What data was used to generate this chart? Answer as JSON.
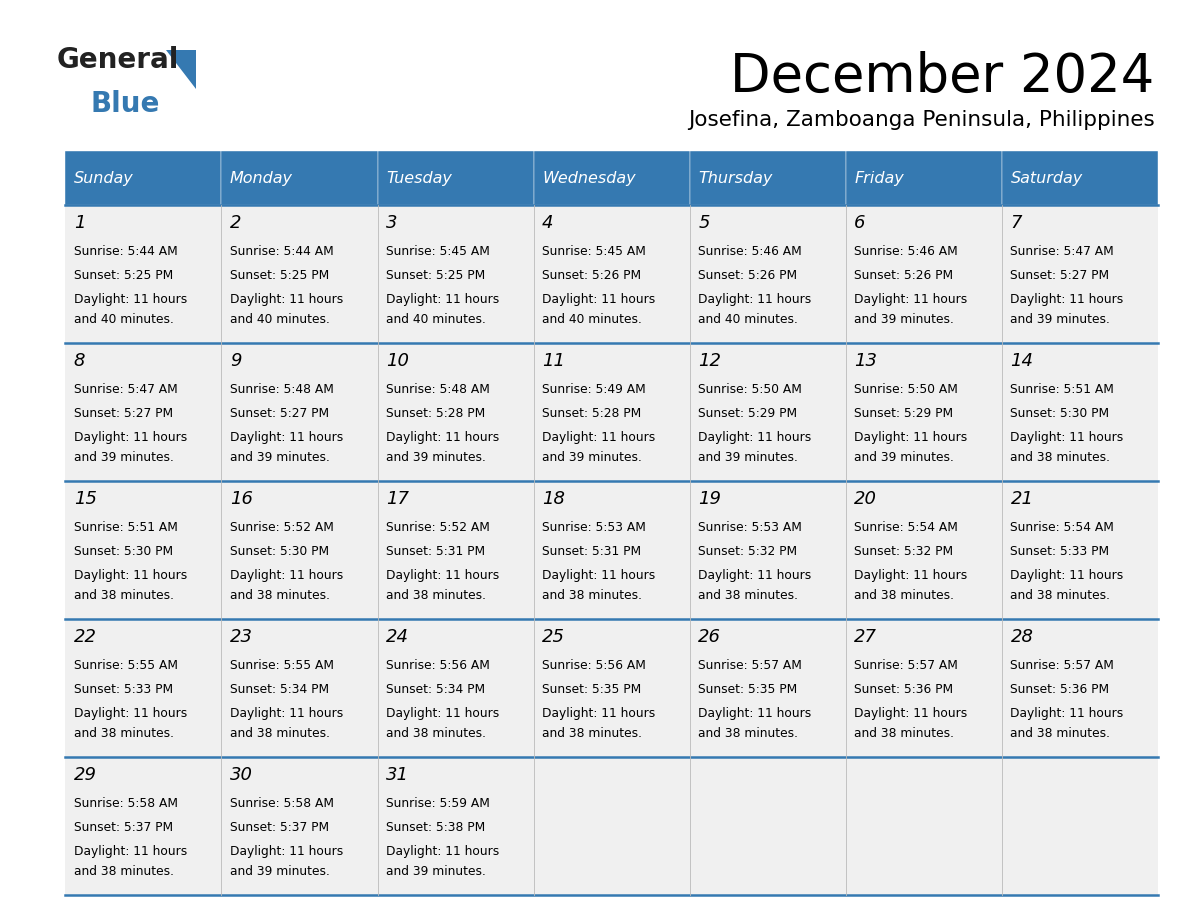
{
  "title": "December 2024",
  "subtitle": "Josefina, Zamboanga Peninsula, Philippines",
  "header_bg": "#3579b1",
  "header_text_color": "#ffffff",
  "day_names": [
    "Sunday",
    "Monday",
    "Tuesday",
    "Wednesday",
    "Thursday",
    "Friday",
    "Saturday"
  ],
  "row_bg": "#f0f0f0",
  "border_color": "#3579b1",
  "text_color": "#000000",
  "logo_general_color": "#1a1a1a",
  "logo_blue_color": "#3579b1",
  "logo_triangle_color": "#3579b1",
  "days": [
    {
      "day": 1,
      "col": 0,
      "row": 0,
      "sunrise": "5:44 AM",
      "sunset": "5:25 PM",
      "daylight": "11 hours and 40 minutes."
    },
    {
      "day": 2,
      "col": 1,
      "row": 0,
      "sunrise": "5:44 AM",
      "sunset": "5:25 PM",
      "daylight": "11 hours and 40 minutes."
    },
    {
      "day": 3,
      "col": 2,
      "row": 0,
      "sunrise": "5:45 AM",
      "sunset": "5:25 PM",
      "daylight": "11 hours and 40 minutes."
    },
    {
      "day": 4,
      "col": 3,
      "row": 0,
      "sunrise": "5:45 AM",
      "sunset": "5:26 PM",
      "daylight": "11 hours and 40 minutes."
    },
    {
      "day": 5,
      "col": 4,
      "row": 0,
      "sunrise": "5:46 AM",
      "sunset": "5:26 PM",
      "daylight": "11 hours and 40 minutes."
    },
    {
      "day": 6,
      "col": 5,
      "row": 0,
      "sunrise": "5:46 AM",
      "sunset": "5:26 PM",
      "daylight": "11 hours and 39 minutes."
    },
    {
      "day": 7,
      "col": 6,
      "row": 0,
      "sunrise": "5:47 AM",
      "sunset": "5:27 PM",
      "daylight": "11 hours and 39 minutes."
    },
    {
      "day": 8,
      "col": 0,
      "row": 1,
      "sunrise": "5:47 AM",
      "sunset": "5:27 PM",
      "daylight": "11 hours and 39 minutes."
    },
    {
      "day": 9,
      "col": 1,
      "row": 1,
      "sunrise": "5:48 AM",
      "sunset": "5:27 PM",
      "daylight": "11 hours and 39 minutes."
    },
    {
      "day": 10,
      "col": 2,
      "row": 1,
      "sunrise": "5:48 AM",
      "sunset": "5:28 PM",
      "daylight": "11 hours and 39 minutes."
    },
    {
      "day": 11,
      "col": 3,
      "row": 1,
      "sunrise": "5:49 AM",
      "sunset": "5:28 PM",
      "daylight": "11 hours and 39 minutes."
    },
    {
      "day": 12,
      "col": 4,
      "row": 1,
      "sunrise": "5:50 AM",
      "sunset": "5:29 PM",
      "daylight": "11 hours and 39 minutes."
    },
    {
      "day": 13,
      "col": 5,
      "row": 1,
      "sunrise": "5:50 AM",
      "sunset": "5:29 PM",
      "daylight": "11 hours and 39 minutes."
    },
    {
      "day": 14,
      "col": 6,
      "row": 1,
      "sunrise": "5:51 AM",
      "sunset": "5:30 PM",
      "daylight": "11 hours and 38 minutes."
    },
    {
      "day": 15,
      "col": 0,
      "row": 2,
      "sunrise": "5:51 AM",
      "sunset": "5:30 PM",
      "daylight": "11 hours and 38 minutes."
    },
    {
      "day": 16,
      "col": 1,
      "row": 2,
      "sunrise": "5:52 AM",
      "sunset": "5:30 PM",
      "daylight": "11 hours and 38 minutes."
    },
    {
      "day": 17,
      "col": 2,
      "row": 2,
      "sunrise": "5:52 AM",
      "sunset": "5:31 PM",
      "daylight": "11 hours and 38 minutes."
    },
    {
      "day": 18,
      "col": 3,
      "row": 2,
      "sunrise": "5:53 AM",
      "sunset": "5:31 PM",
      "daylight": "11 hours and 38 minutes."
    },
    {
      "day": 19,
      "col": 4,
      "row": 2,
      "sunrise": "5:53 AM",
      "sunset": "5:32 PM",
      "daylight": "11 hours and 38 minutes."
    },
    {
      "day": 20,
      "col": 5,
      "row": 2,
      "sunrise": "5:54 AM",
      "sunset": "5:32 PM",
      "daylight": "11 hours and 38 minutes."
    },
    {
      "day": 21,
      "col": 6,
      "row": 2,
      "sunrise": "5:54 AM",
      "sunset": "5:33 PM",
      "daylight": "11 hours and 38 minutes."
    },
    {
      "day": 22,
      "col": 0,
      "row": 3,
      "sunrise": "5:55 AM",
      "sunset": "5:33 PM",
      "daylight": "11 hours and 38 minutes."
    },
    {
      "day": 23,
      "col": 1,
      "row": 3,
      "sunrise": "5:55 AM",
      "sunset": "5:34 PM",
      "daylight": "11 hours and 38 minutes."
    },
    {
      "day": 24,
      "col": 2,
      "row": 3,
      "sunrise": "5:56 AM",
      "sunset": "5:34 PM",
      "daylight": "11 hours and 38 minutes."
    },
    {
      "day": 25,
      "col": 3,
      "row": 3,
      "sunrise": "5:56 AM",
      "sunset": "5:35 PM",
      "daylight": "11 hours and 38 minutes."
    },
    {
      "day": 26,
      "col": 4,
      "row": 3,
      "sunrise": "5:57 AM",
      "sunset": "5:35 PM",
      "daylight": "11 hours and 38 minutes."
    },
    {
      "day": 27,
      "col": 5,
      "row": 3,
      "sunrise": "5:57 AM",
      "sunset": "5:36 PM",
      "daylight": "11 hours and 38 minutes."
    },
    {
      "day": 28,
      "col": 6,
      "row": 3,
      "sunrise": "5:57 AM",
      "sunset": "5:36 PM",
      "daylight": "11 hours and 38 minutes."
    },
    {
      "day": 29,
      "col": 0,
      "row": 4,
      "sunrise": "5:58 AM",
      "sunset": "5:37 PM",
      "daylight": "11 hours and 38 minutes."
    },
    {
      "day": 30,
      "col": 1,
      "row": 4,
      "sunrise": "5:58 AM",
      "sunset": "5:37 PM",
      "daylight": "11 hours and 39 minutes."
    },
    {
      "day": 31,
      "col": 2,
      "row": 4,
      "sunrise": "5:59 AM",
      "sunset": "5:38 PM",
      "daylight": "11 hours and 39 minutes."
    }
  ]
}
